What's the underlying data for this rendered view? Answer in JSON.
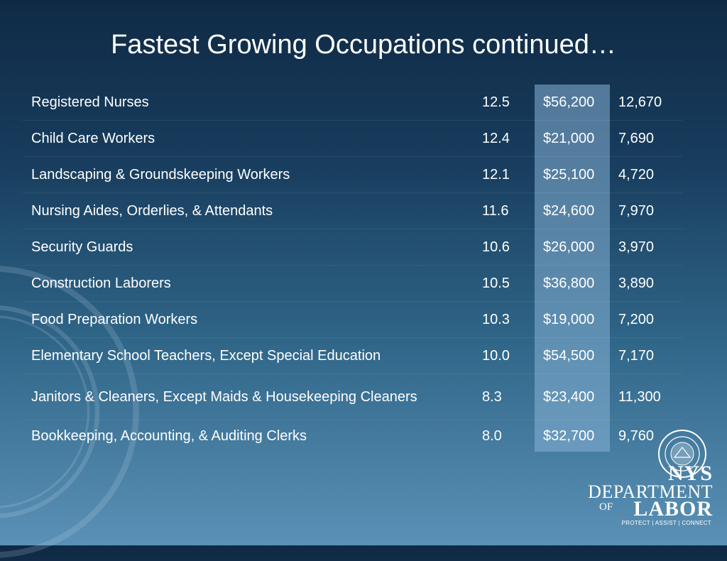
{
  "slide": {
    "title": "Fastest Growing Occupations continued…"
  },
  "rows": [
    {
      "name": "Registered Nurses",
      "growth": "12.5",
      "wage": "$56,200",
      "jobs": "12,670"
    },
    {
      "name": "Child Care Workers",
      "growth": "12.4",
      "wage": "$21,000",
      "jobs": "7,690"
    },
    {
      "name": "Landscaping & Groundskeeping Workers",
      "growth": "12.1",
      "wage": "$25,100",
      "jobs": "4,720"
    },
    {
      "name": "Nursing Aides, Orderlies, & Attendants",
      "growth": "11.6",
      "wage": "$24,600",
      "jobs": "7,970"
    },
    {
      "name": "Security Guards",
      "growth": "10.6",
      "wage": "$26,000",
      "jobs": "3,970"
    },
    {
      "name": "Construction Laborers",
      "growth": "10.5",
      "wage": "$36,800",
      "jobs": "3,890"
    },
    {
      "name": "Food Preparation Workers",
      "growth": "10.3",
      "wage": "$19,000",
      "jobs": "7,200"
    },
    {
      "name": "Elementary School Teachers, Except Special Education",
      "growth": "10.0",
      "wage": "$54,500",
      "jobs": "7,170"
    },
    {
      "name": "Janitors & Cleaners, Except Maids & Housekeeping Cleaners",
      "growth": "8.3",
      "wage": "$23,400",
      "jobs": "11,300"
    },
    {
      "name": "Bookkeeping, Accounting, & Auditing Clerks",
      "growth": "8.0",
      "wage": "$32,700",
      "jobs": "9,760"
    }
  ],
  "logo": {
    "line1": "NYS",
    "line2": "DEPARTMENT",
    "line3_small": "OF",
    "line3": "LABOR",
    "tagline": "PROTECT | ASSIST | CONNECT",
    "seal_icon": "nys-seal-icon",
    "watermark_icon": "department-seal-watermark"
  },
  "colors": {
    "background_top": "#0f2a45",
    "background_bottom": "#5b91b6",
    "wage_column_highlight": "#86b2d6",
    "text": "#ffffff"
  }
}
